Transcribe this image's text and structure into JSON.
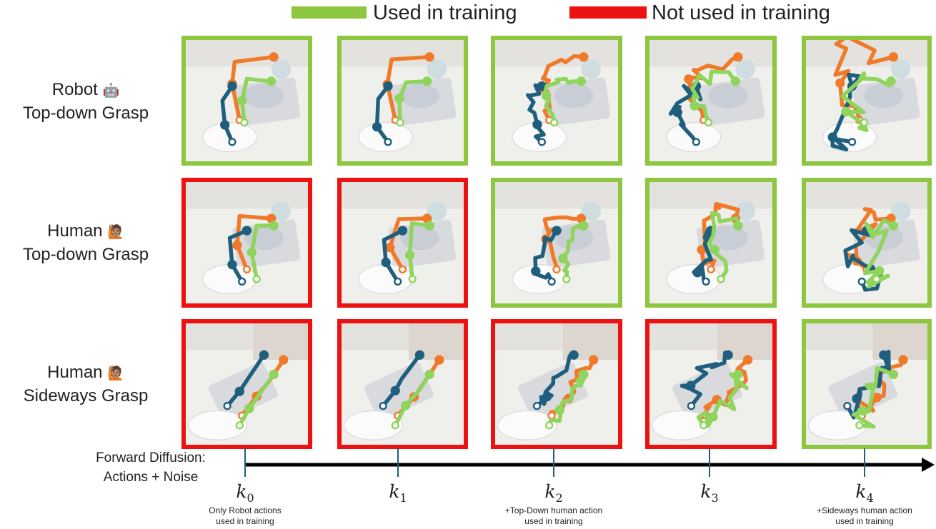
{
  "legend": {
    "used_label": "Used in training",
    "not_used_label": "Not used in training",
    "used_color": "#8dc63f",
    "not_used_color": "#ee1111"
  },
  "rows": [
    {
      "line1": "Robot",
      "emoji": "🤖",
      "line2": "Top-down Grasp"
    },
    {
      "line1": "Human",
      "emoji": "🙋🏽",
      "line2": "Top-down Grasp"
    },
    {
      "line1": "Human",
      "emoji": "🙋🏽",
      "line2": "Sideways Grasp"
    }
  ],
  "grid_status": [
    [
      "used",
      "used",
      "used",
      "used",
      "used"
    ],
    [
      "not_used",
      "not_used",
      "used",
      "used",
      "used"
    ],
    [
      "not_used",
      "not_used",
      "not_used",
      "not_used",
      "used"
    ]
  ],
  "axis": {
    "title_line1": "Forward Diffusion:",
    "title_line2": "Actions + Noise"
  },
  "steps": [
    {
      "var": "k",
      "sub": "0",
      "note1": "Only Robot actions",
      "note2": "used in training"
    },
    {
      "var": "k",
      "sub": "1",
      "note1": "",
      "note2": ""
    },
    {
      "var": "k",
      "sub": "2",
      "note1": "+Top-Down human action",
      "note2": "used in training"
    },
    {
      "var": "k",
      "sub": "3",
      "note1": "",
      "note2": ""
    },
    {
      "var": "k",
      "sub": "4",
      "note1": "+Sideways human action",
      "note2": "used in training"
    }
  ],
  "trajectory_colors": {
    "blue": "#1f5f7d",
    "orange": "#f07a2a",
    "green": "#8fd45c"
  }
}
